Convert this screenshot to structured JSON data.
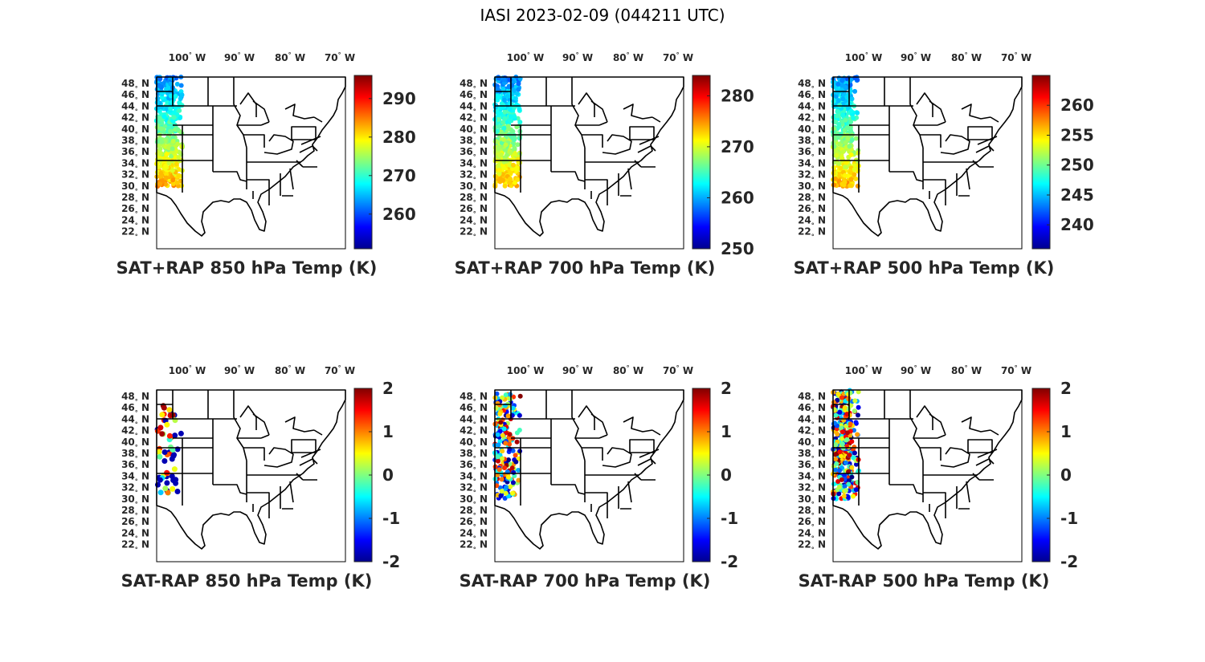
{
  "figure": {
    "title": "IASI 2023-02-09 (044211 UTC)"
  },
  "lon_labels": [
    {
      "deg": "100",
      "hem": "W"
    },
    {
      "deg": "90",
      "hem": "W"
    },
    {
      "deg": "80",
      "hem": "W"
    },
    {
      "deg": "70",
      "hem": "W"
    }
  ],
  "lat_labels": [
    {
      "deg": "48",
      "hem": "N"
    },
    {
      "deg": "46",
      "hem": "N"
    },
    {
      "deg": "44",
      "hem": "N"
    },
    {
      "deg": "42",
      "hem": "N"
    },
    {
      "deg": "40",
      "hem": "N"
    },
    {
      "deg": "38",
      "hem": "N"
    },
    {
      "deg": "36",
      "hem": "N"
    },
    {
      "deg": "34",
      "hem": "N"
    },
    {
      "deg": "32",
      "hem": "N"
    },
    {
      "deg": "30",
      "hem": "N"
    },
    {
      "deg": "28",
      "hem": "N"
    },
    {
      "deg": "26",
      "hem": "N"
    },
    {
      "deg": "24",
      "hem": "N"
    },
    {
      "deg": "22",
      "hem": "N"
    }
  ],
  "chart_data": [
    {
      "type": "map",
      "title": "SAT+RAP 850 hPa Temp (K)",
      "variable": "temperature",
      "units": "K",
      "lon_range": [
        -106,
        -67
      ],
      "lat_range": [
        22,
        49.5
      ],
      "colorbar": {
        "colormap": "jet",
        "range": [
          251,
          296
        ],
        "ticks": [
          "260",
          "270",
          "280",
          "290"
        ]
      },
      "swath": "full",
      "swath_lon_range": [
        -106,
        -102
      ],
      "swath_lat_range": [
        32,
        49.5
      ]
    },
    {
      "type": "map",
      "title": "SAT+RAP 700 hPa Temp (K)",
      "variable": "temperature",
      "units": "K",
      "lon_range": [
        -106,
        -67
      ],
      "lat_range": [
        22,
        49.5
      ],
      "colorbar": {
        "colormap": "jet",
        "range": [
          250,
          284
        ],
        "ticks": [
          "250",
          "260",
          "270",
          "280"
        ]
      },
      "swath": "full",
      "swath_lon_range": [
        -106,
        -102
      ],
      "swath_lat_range": [
        32,
        49.5
      ]
    },
    {
      "type": "map",
      "title": "SAT+RAP 500 hPa Temp (K)",
      "variable": "temperature",
      "units": "K",
      "lon_range": [
        -106,
        -67
      ],
      "lat_range": [
        22,
        49.5
      ],
      "colorbar": {
        "colormap": "jet",
        "range": [
          236,
          265
        ],
        "ticks": [
          "240",
          "245",
          "250",
          "255",
          "260"
        ]
      },
      "swath": "full",
      "swath_lon_range": [
        -106,
        -102
      ],
      "swath_lat_range": [
        32,
        49.5
      ]
    },
    {
      "type": "map",
      "title": "SAT-RAP 850 hPa Temp (K)",
      "variable": "temperature difference",
      "units": "K",
      "lon_range": [
        -106,
        -67
      ],
      "lat_range": [
        22,
        49.5
      ],
      "colorbar": {
        "colormap": "jet",
        "range": [
          -2,
          2
        ],
        "ticks": [
          "-2",
          "-1",
          "0",
          "1",
          "2"
        ]
      },
      "swath": "sparse",
      "swath_lon_range": [
        -106,
        -102
      ],
      "swath_lat_range": [
        32,
        47.5
      ]
    },
    {
      "type": "map",
      "title": "SAT-RAP 700 hPa Temp (K)",
      "variable": "temperature difference",
      "units": "K",
      "lon_range": [
        -106,
        -67
      ],
      "lat_range": [
        22,
        49.5
      ],
      "colorbar": {
        "colormap": "jet",
        "range": [
          -2,
          2
        ],
        "ticks": [
          "-2",
          "-1",
          "0",
          "1",
          "2"
        ]
      },
      "swath": "medium",
      "swath_lon_range": [
        -106,
        -102
      ],
      "swath_lat_range": [
        32,
        49
      ]
    },
    {
      "type": "map",
      "title": "SAT-RAP 500 hPa Temp (K)",
      "variable": "temperature difference",
      "units": "K",
      "lon_range": [
        -106,
        -67
      ],
      "lat_range": [
        22,
        49.5
      ],
      "colorbar": {
        "colormap": "jet",
        "range": [
          -2,
          2
        ],
        "ticks": [
          "-2",
          "-1",
          "0",
          "1",
          "2"
        ]
      },
      "swath": "dense",
      "swath_lon_range": [
        -106,
        -102
      ],
      "swath_lat_range": [
        32,
        49.5
      ]
    }
  ]
}
